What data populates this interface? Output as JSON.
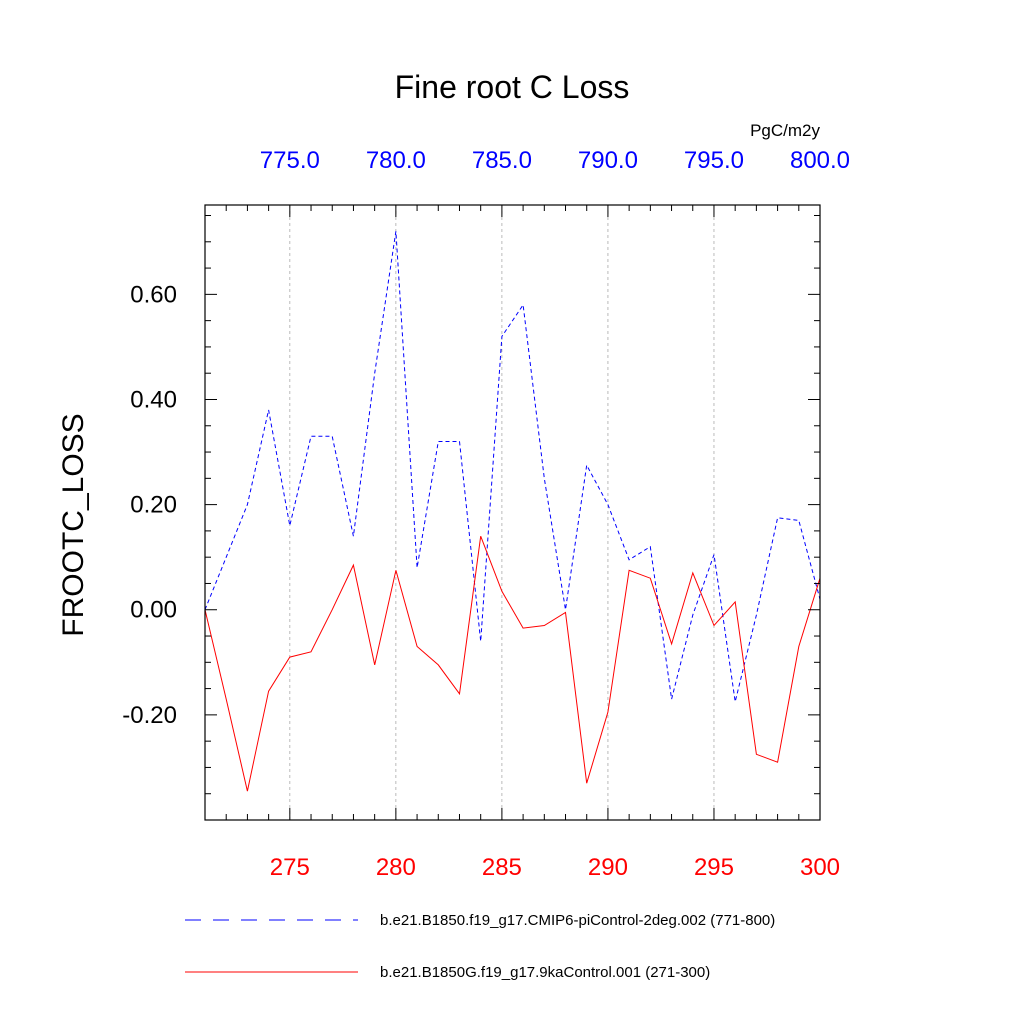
{
  "chart_data": {
    "type": "line",
    "title": "Fine root C Loss",
    "ylabel": "FROOTC_LOSS",
    "units": "PgC/m2y",
    "ylim": [
      -0.4,
      0.77
    ],
    "yticks": [
      0.6,
      0.4,
      0.2,
      0.0,
      -0.2
    ],
    "ytick_labels": [
      "0.60",
      "0.40",
      "0.20",
      "0.00",
      "-0.20"
    ],
    "x_bottom": {
      "range": [
        271,
        300
      ],
      "ticks": [
        275,
        280,
        285,
        290,
        295,
        300
      ],
      "tick_labels": [
        "275",
        "280",
        "285",
        "290",
        "295",
        "300"
      ],
      "color": "#ff0000"
    },
    "x_top": {
      "range": [
        771,
        800
      ],
      "ticks": [
        775,
        780,
        785,
        790,
        795,
        800
      ],
      "tick_labels": [
        "775.0",
        "780.0",
        "785.0",
        "790.0",
        "795.0",
        "800.0"
      ],
      "color": "#0000ff"
    },
    "grid": "vertical dashed at major x ticks",
    "series": [
      {
        "name": "b.e21.B1850.f19_g17.CMIP6-piControl-2deg.002 (771-800)",
        "axis": "top",
        "color": "#0000ff",
        "style": "dashed",
        "x": [
          771,
          772,
          773,
          774,
          775,
          776,
          777,
          778,
          779,
          780,
          781,
          782,
          783,
          784,
          785,
          786,
          787,
          788,
          789,
          790,
          791,
          792,
          793,
          794,
          795,
          796,
          797,
          798,
          799,
          800
        ],
        "values": [
          0.0,
          0.1,
          0.2,
          0.38,
          0.16,
          0.33,
          0.33,
          0.14,
          0.45,
          0.72,
          0.08,
          0.32,
          0.32,
          -0.06,
          0.52,
          0.58,
          0.25,
          0.0,
          0.275,
          0.2,
          0.095,
          0.12,
          -0.17,
          -0.01,
          0.105,
          -0.175,
          -0.01,
          0.175,
          0.17,
          0.02
        ]
      },
      {
        "name": "b.e21.B1850G.f19_g17.9kaControl.001 (271-300)",
        "axis": "bottom",
        "color": "#ff0000",
        "style": "solid",
        "x": [
          271,
          272,
          273,
          274,
          275,
          276,
          277,
          278,
          279,
          280,
          281,
          282,
          283,
          284,
          285,
          286,
          287,
          288,
          289,
          290,
          291,
          292,
          293,
          294,
          295,
          296,
          297,
          298,
          299,
          300
        ],
        "values": [
          0.0,
          -0.17,
          -0.345,
          -0.155,
          -0.09,
          -0.08,
          0.0,
          0.085,
          -0.105,
          0.075,
          -0.07,
          -0.105,
          -0.16,
          0.14,
          0.035,
          -0.035,
          -0.03,
          -0.005,
          -0.33,
          -0.195,
          0.075,
          0.06,
          -0.065,
          0.07,
          -0.03,
          0.015,
          -0.275,
          -0.29,
          -0.07,
          0.06
        ]
      }
    ]
  }
}
